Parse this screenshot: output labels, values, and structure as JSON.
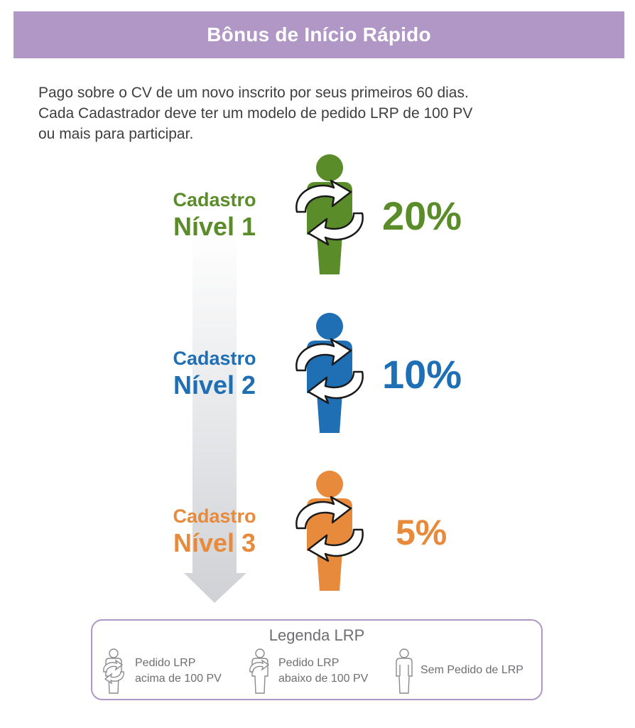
{
  "header": {
    "title": "Bônus de Início Rápido"
  },
  "intro": {
    "lines": [
      "Pago sobre o CV de um novo inscrito por seus primeiros 60 dias.",
      "Cada Cadastrador deve ter um modelo de pedido LRP de 100 PV",
      "ou mais para participar."
    ]
  },
  "levels": [
    {
      "line1": "Cadastro",
      "line2": "Nível 1",
      "percent": "20%",
      "color": "#5b8c2a",
      "icon": "person-lrp-icon"
    },
    {
      "line1": "Cadastro",
      "line2": "Nível 2",
      "percent": "10%",
      "color": "#1f6fb5",
      "icon": "person-lrp-icon"
    },
    {
      "line1": "Cadastro",
      "line2": "Nível 3",
      "percent": "5%",
      "color": "#e78a3c",
      "icon": "person-lrp-icon"
    }
  ],
  "legend": {
    "title": "Legenda LRP",
    "items": [
      {
        "line1": "Pedido LRP",
        "line2": "acima de 100 PV",
        "icon": "person-arrows-icon"
      },
      {
        "line1": "Pedido LRP",
        "line2": "abaixo de 100 PV",
        "icon": "person-arrow-icon"
      },
      {
        "line1": "Sem Pedido de LRP",
        "line2": "",
        "icon": "person-icon"
      }
    ]
  },
  "colors": {
    "header": "#b197c5",
    "legend_border": "#b197c5",
    "legend_text": "#6d6e71"
  }
}
